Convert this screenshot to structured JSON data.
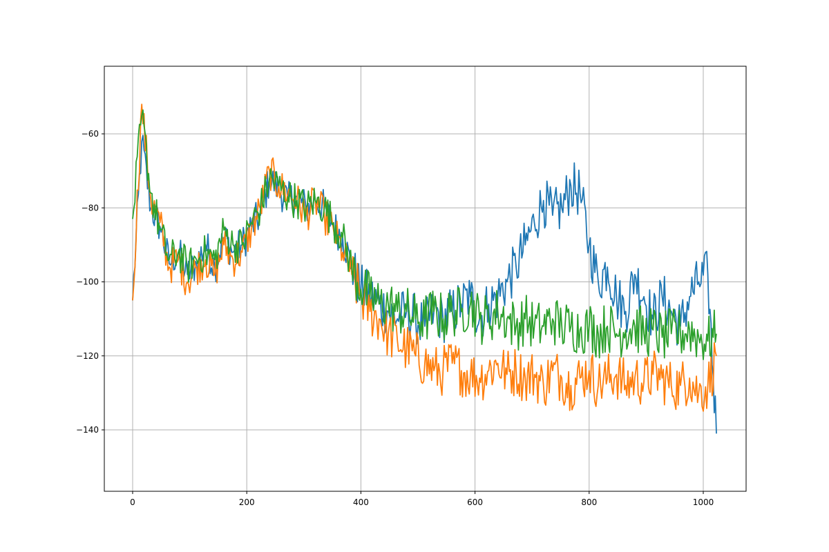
{
  "chart_data": {
    "type": "line",
    "title": "",
    "xlabel": "",
    "ylabel": "",
    "xlim": [
      -50,
      1075
    ],
    "ylim": [
      -158,
      -42
    ],
    "grid": true,
    "legend": null,
    "x_ticks": [
      0,
      200,
      400,
      600,
      800,
      1000
    ],
    "x_tick_labels": [
      "0",
      "200",
      "400",
      "600",
      "800",
      "1000"
    ],
    "y_ticks": [
      -60,
      -80,
      -100,
      -120,
      -140
    ],
    "y_tick_labels": [
      "−60",
      "−80",
      "−100",
      "−120",
      "−140"
    ],
    "x": [
      0,
      16,
      32,
      48,
      64,
      80,
      96,
      112,
      128,
      144,
      160,
      176,
      192,
      208,
      224,
      240,
      256,
      272,
      288,
      304,
      320,
      336,
      352,
      368,
      384,
      400,
      416,
      432,
      448,
      464,
      480,
      496,
      512,
      528,
      544,
      560,
      576,
      592,
      608,
      624,
      640,
      656,
      672,
      688,
      704,
      720,
      736,
      752,
      768,
      784,
      800,
      816,
      832,
      848,
      864,
      880,
      896,
      912,
      928,
      944,
      960,
      976,
      992,
      1008,
      1023
    ],
    "series": [
      {
        "name": "series-1",
        "color": "#1f77b4",
        "values": [
          -105,
          -62,
          -80,
          -85,
          -95,
          -92,
          -98,
          -95,
          -90,
          -96,
          -88,
          -92,
          -90,
          -85,
          -82,
          -72,
          -75,
          -78,
          -77,
          -80,
          -78,
          -80,
          -85,
          -88,
          -96,
          -102,
          -104,
          -106,
          -108,
          -110,
          -108,
          -110,
          -112,
          -108,
          -110,
          -108,
          -106,
          -104,
          -110,
          -106,
          -104,
          -100,
          -96,
          -90,
          -84,
          -78,
          -82,
          -80,
          -74,
          -76,
          -90,
          -100,
          -96,
          -104,
          -108,
          -98,
          -104,
          -110,
          -104,
          -108,
          -112,
          -104,
          -100,
          -98,
          -141
        ]
      },
      {
        "name": "series-2",
        "color": "#ff7f0e",
        "values": [
          -105,
          -52,
          -78,
          -84,
          -96,
          -94,
          -100,
          -96,
          -94,
          -98,
          -90,
          -94,
          -92,
          -86,
          -80,
          -70,
          -74,
          -76,
          -78,
          -82,
          -78,
          -82,
          -86,
          -92,
          -98,
          -104,
          -108,
          -110,
          -114,
          -116,
          -118,
          -120,
          -122,
          -124,
          -124,
          -122,
          -124,
          -125,
          -126,
          -124,
          -122,
          -125,
          -124,
          -126,
          -125,
          -128,
          -124,
          -126,
          -128,
          -126,
          -124,
          -128,
          -126,
          -125,
          -128,
          -126,
          -127,
          -125,
          -126,
          -128,
          -128,
          -126,
          -130,
          -128,
          -120
        ]
      },
      {
        "name": "series-3",
        "color": "#2ca02c",
        "values": [
          -83,
          -55,
          -76,
          -86,
          -94,
          -92,
          -96,
          -94,
          -92,
          -94,
          -86,
          -90,
          -90,
          -84,
          -80,
          -72,
          -74,
          -77,
          -78,
          -80,
          -78,
          -80,
          -84,
          -88,
          -96,
          -102,
          -104,
          -106,
          -106,
          -108,
          -108,
          -110,
          -110,
          -108,
          -110,
          -108,
          -108,
          -106,
          -110,
          -110,
          -108,
          -110,
          -112,
          -110,
          -112,
          -112,
          -110,
          -112,
          -112,
          -113,
          -112,
          -114,
          -112,
          -114,
          -113,
          -112,
          -114,
          -113,
          -115,
          -114,
          -114,
          -113,
          -115,
          -116,
          -114
        ]
      }
    ]
  },
  "axes": {
    "x_tick_labels": [
      "0",
      "200",
      "400",
      "600",
      "800",
      "1000"
    ],
    "y_tick_labels": [
      "−60",
      "−80",
      "−100",
      "−120",
      "−140"
    ]
  }
}
